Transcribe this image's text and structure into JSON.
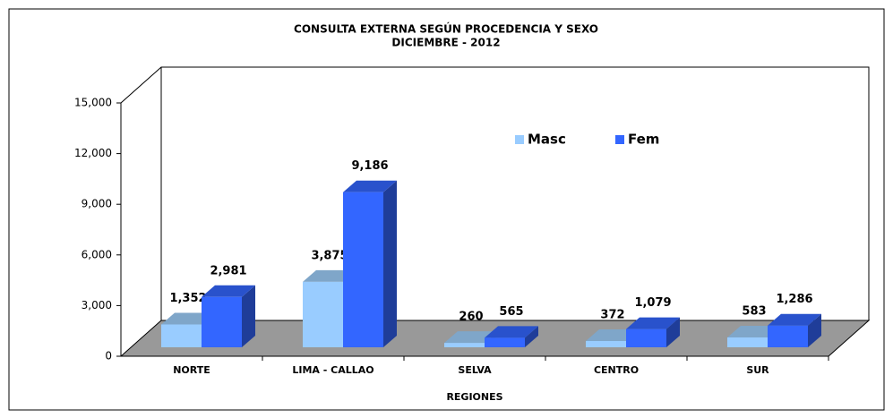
{
  "chart_data": {
    "type": "bar3d",
    "title": [
      "CONSULTA EXTERNA SEGÚN PROCEDENCIA Y SEXO",
      "DICIEMBRE  - 2012"
    ],
    "xlabel": "REGIONES",
    "categories": [
      "NORTE",
      "LIMA - CALLAO",
      "SELVA",
      "CENTRO",
      "SUR"
    ],
    "series": [
      {
        "name": "Masc",
        "color": "#99ccff",
        "values": [
          1352,
          3875,
          260,
          372,
          583
        ],
        "value_labels": [
          "1,352",
          "3,875",
          "260",
          "372",
          "583"
        ]
      },
      {
        "name": "Fem",
        "color": "#3366ff",
        "values": [
          2981,
          9186,
          565,
          1079,
          1286
        ],
        "value_labels": [
          "2,981",
          "9,186",
          "565",
          "1,079",
          "1,286"
        ]
      }
    ],
    "ylim": [
      0,
      15000
    ],
    "yticks": [
      0,
      {
        "value": 3000,
        "label": "3,000"
      },
      {
        "value": 6000,
        "label": "6,000"
      },
      {
        "value": 9000,
        "label": "9,000"
      },
      {
        "value": 12000,
        "label": "12,000"
      },
      {
        "value": 15000,
        "label": "15,000"
      }
    ],
    "legend": "top-right"
  }
}
